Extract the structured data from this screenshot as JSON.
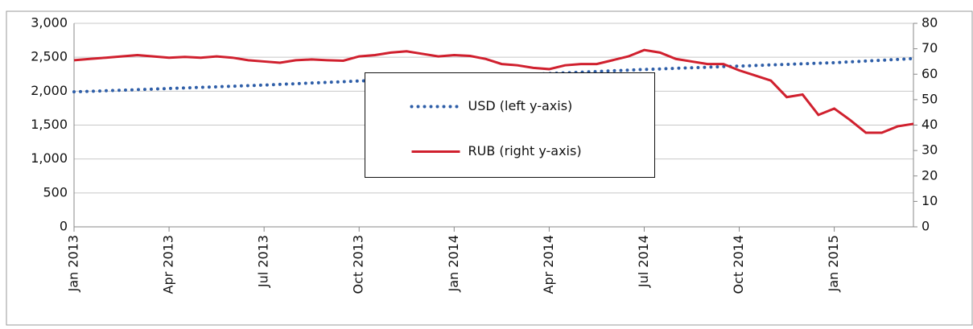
{
  "chart_data": {
    "type": "line",
    "categories": [
      "Jan 2013",
      null,
      null,
      null,
      null,
      null,
      "Apr 2013",
      null,
      null,
      null,
      null,
      null,
      "Jul 2013",
      null,
      null,
      null,
      null,
      null,
      "Oct 2013",
      null,
      null,
      null,
      null,
      null,
      "Jan 2014",
      null,
      null,
      null,
      null,
      null,
      "Apr 2014",
      null,
      null,
      null,
      null,
      null,
      "Jul 2014",
      null,
      null,
      null,
      null,
      null,
      "Oct 2014",
      null,
      null,
      null,
      null,
      null,
      "Jan 2015",
      null,
      null,
      null,
      null,
      null
    ],
    "series": [
      {
        "name": "USD (left y-axis)",
        "color": "#2e5ea8",
        "style": "dotted",
        "axis": "y",
        "values": [
          1990,
          1998,
          2006,
          2014,
          2022,
          2031,
          2040,
          2048,
          2056,
          2064,
          2073,
          2081,
          2090,
          2100,
          2110,
          2120,
          2130,
          2140,
          2150,
          2158,
          2167,
          2175,
          2184,
          2192,
          2200,
          2210,
          2220,
          2230,
          2240,
          2250,
          2260,
          2270,
          2280,
          2290,
          2300,
          2310,
          2320,
          2328,
          2337,
          2345,
          2353,
          2362,
          2370,
          2378,
          2387,
          2395,
          2403,
          2412,
          2420,
          2432,
          2444,
          2456,
          2468,
          2480
        ]
      },
      {
        "name": "RUB (right y-axis)",
        "color": "#d0202e",
        "style": "solid",
        "axis": "y2",
        "values": [
          65.5,
          66,
          66.5,
          67,
          67.5,
          67,
          66.5,
          66.8,
          66.5,
          67,
          66.5,
          65.5,
          65,
          64.5,
          65.5,
          65.8,
          65.5,
          65.3,
          67,
          67.5,
          68.5,
          69,
          68,
          67,
          67.5,
          67.2,
          66,
          64,
          63.5,
          62.5,
          62,
          63.5,
          64,
          64,
          65.5,
          67,
          69.5,
          68.5,
          66,
          65,
          64,
          64,
          61.5,
          59.5,
          57.5,
          51,
          52,
          44,
          46.5,
          42,
          37,
          37,
          39.5,
          40.5
        ]
      }
    ],
    "ylim": [
      0,
      3000
    ],
    "yticks": [
      0,
      500,
      {
        "value": 1000,
        "label": "1,000"
      },
      {
        "value": 1500,
        "label": "1,500"
      },
      {
        "value": 2000,
        "label": "2,000"
      },
      {
        "value": 2500,
        "label": "2,500"
      },
      {
        "value": 3000,
        "label": "3,000"
      }
    ],
    "y2lim": [
      0,
      80
    ],
    "y2ticks": [
      0,
      10,
      20,
      30,
      40,
      50,
      60,
      70,
      80
    ],
    "grid": true,
    "legend": "center"
  }
}
